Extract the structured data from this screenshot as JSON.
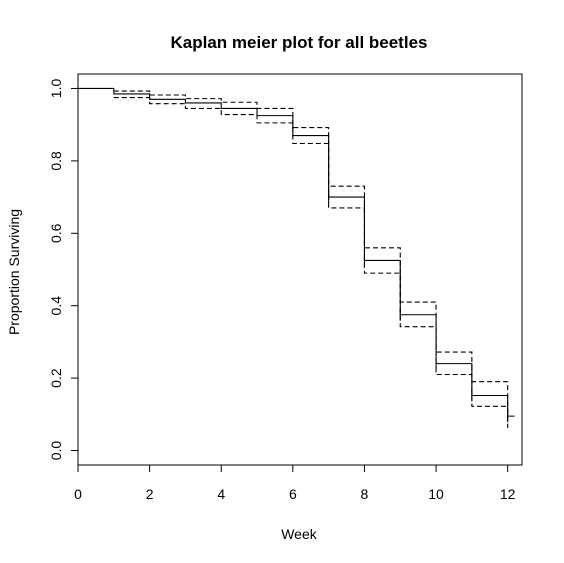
{
  "chart_data": {
    "type": "line",
    "subtype": "kaplan-meier-step",
    "title": "Kaplan meier plot for all beetles",
    "xlabel": "Week",
    "ylabel": "Proportion Surviving",
    "xlim": [
      0,
      12.4
    ],
    "ylim": [
      -0.04,
      1.04
    ],
    "xticks": [
      "0",
      "2",
      "4",
      "6",
      "8",
      "10",
      "12"
    ],
    "yticks": [
      "0.0",
      "0.2",
      "0.4",
      "0.6",
      "0.8",
      "1.0"
    ],
    "grid": false,
    "legend": "none",
    "series": [
      {
        "role": "estimate",
        "line": "solid",
        "x": [
          0,
          1,
          2,
          3,
          4,
          5,
          6,
          7,
          8,
          9,
          10,
          11,
          12
        ],
        "y": [
          1.0,
          0.985,
          0.97,
          0.96,
          0.945,
          0.925,
          0.87,
          0.7,
          0.525,
          0.375,
          0.24,
          0.152,
          0.095
        ]
      },
      {
        "role": "upper-ci",
        "line": "dashed",
        "x": [
          1,
          2,
          3,
          4,
          5,
          6,
          7,
          8,
          9,
          10,
          11,
          12
        ],
        "y": [
          0.993,
          0.982,
          0.972,
          0.962,
          0.945,
          0.892,
          0.73,
          0.56,
          0.41,
          0.272,
          0.19,
          0.12
        ]
      },
      {
        "role": "lower-ci",
        "line": "dashed",
        "x": [
          1,
          2,
          3,
          4,
          5,
          6,
          7,
          8,
          9,
          10,
          11,
          12
        ],
        "y": [
          0.975,
          0.958,
          0.945,
          0.928,
          0.905,
          0.848,
          0.67,
          0.49,
          0.342,
          0.21,
          0.122,
          0.062
        ]
      }
    ],
    "censor_marks": {
      "x": [
        7,
        8,
        9,
        10,
        11,
        12
      ],
      "y": [
        0.7,
        0.525,
        0.375,
        0.24,
        0.152,
        0.095
      ]
    }
  }
}
